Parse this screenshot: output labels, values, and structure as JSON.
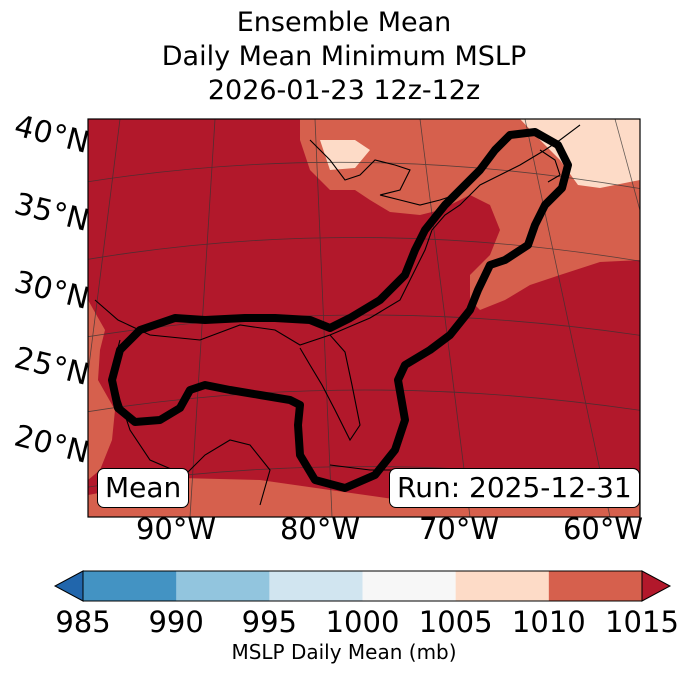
{
  "title": {
    "line1": "Ensemble Mean",
    "line2": "Daily Mean Minimum MSLP",
    "line3": "2026-01-23 12z-12z"
  },
  "lat_labels": [
    "40°N",
    "35°N",
    "30°N",
    "25°N",
    "20°N"
  ],
  "lon_labels": [
    "90°W",
    "80°W",
    "70°W",
    "60°W"
  ],
  "mean_box": "Mean",
  "run_box": "Run: 2025-12-31",
  "colorbar": {
    "ticks": [
      "985",
      "990",
      "995",
      "1000",
      "1005",
      "1010",
      "1015"
    ],
    "colors": [
      "#2166ac",
      "#4393c3",
      "#92c5de",
      "#d1e5f0",
      "#f7f7f7",
      "#fddbc7",
      "#d6604d",
      "#b2182b"
    ],
    "label": "MSLP Daily Mean (mb)"
  },
  "colors": {
    "high_pressure": "#b2182b",
    "mid_pressure": "#d6604d",
    "low_fill": "#fddbc7",
    "outline": "#000000"
  }
}
